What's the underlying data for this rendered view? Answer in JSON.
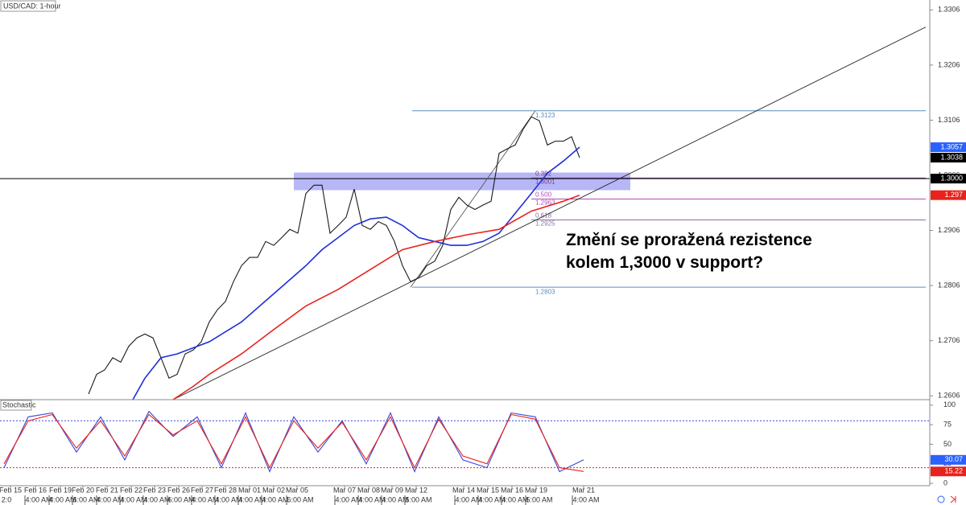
{
  "chart_data": [
    {
      "type": "line",
      "title": "USD/CAD: 1-hour",
      "annotation": [
        "Změní se proražená rezistence",
        "kolem 1,3000 v support?"
      ],
      "xlim": [
        0,
        115.5
      ],
      "ylim": [
        1.2599,
        1.3324
      ],
      "yticks": [
        1.2606,
        1.2706,
        1.2806,
        1.2906,
        1.3006,
        1.3106,
        1.3206,
        1.3306
      ],
      "xticks": [
        {
          "value": 1.3,
          "label": "Feb 15"
        },
        {
          "value": 4.4,
          "label": "Feb 16"
        },
        {
          "value": 7.5,
          "label": "Feb 19"
        },
        {
          "value": 10.3,
          "label": "Feb 20"
        },
        {
          "value": 13.3,
          "label": "Feb 21"
        },
        {
          "value": 16.3,
          "label": "Feb 22"
        },
        {
          "value": 19.2,
          "label": "Feb 23"
        },
        {
          "value": 22.2,
          "label": "Feb 26"
        },
        {
          "value": 25.1,
          "label": "Feb 27"
        },
        {
          "value": 28,
          "label": "Feb 28"
        },
        {
          "value": 31,
          "label": "Mar 01"
        },
        {
          "value": 34,
          "label": "Mar 02"
        },
        {
          "value": 36.9,
          "label": "Mar 05"
        },
        {
          "value": 42.8,
          "label": "Mar 07"
        },
        {
          "value": 45.8,
          "label": "Mar 08"
        },
        {
          "value": 48.7,
          "label": "Mar 09"
        },
        {
          "value": 51.7,
          "label": "Mar 12"
        },
        {
          "value": 57.6,
          "label": "Mar 14"
        },
        {
          "value": 60.6,
          "label": "Mar 15"
        },
        {
          "value": 63.6,
          "label": "Mar 16"
        },
        {
          "value": 66.6,
          "label": "Mar 19"
        },
        {
          "value": 72.5,
          "label": "Mar 21"
        }
      ],
      "time_ticks": [
        {
          "value": 0.8,
          "label": "2:0"
        },
        {
          "value": 4.8,
          "label": "4:00 AM"
        },
        {
          "value": 7.8,
          "label": "4:00 AM"
        },
        {
          "value": 10.7,
          "label": "6:00 AM"
        },
        {
          "value": 13.7,
          "label": "4:00 AM"
        },
        {
          "value": 16.6,
          "label": "4:00 AM"
        },
        {
          "value": 19.5,
          "label": "4:00 AM"
        },
        {
          "value": 22.5,
          "label": "6:00 AM"
        },
        {
          "value": 25.5,
          "label": "4:00 AM"
        },
        {
          "value": 28.4,
          "label": "4:00 AM"
        },
        {
          "value": 31.3,
          "label": "4:00 AM"
        },
        {
          "value": 34.2,
          "label": "4:00 AM"
        },
        {
          "value": 37.3,
          "label": "6:00 AM"
        },
        {
          "value": 43.3,
          "label": "4:00 AM"
        },
        {
          "value": 46.2,
          "label": "4:00 AM"
        },
        {
          "value": 49.1,
          "label": "4:00 AM"
        },
        {
          "value": 52,
          "label": "5:00 AM"
        },
        {
          "value": 58.2,
          "label": "4:00 AM"
        },
        {
          "value": 61.1,
          "label": "4:00 AM"
        },
        {
          "value": 64,
          "label": "4:00 AM"
        },
        {
          "value": 67,
          "label": "5:00 AM"
        },
        {
          "value": 72.8,
          "label": "4:00 AM"
        }
      ],
      "series": [
        {
          "color": "#1a1a1a",
          "x": [
            11,
            12,
            13,
            14,
            15,
            16,
            17,
            18,
            19,
            20,
            21,
            22,
            23,
            24,
            25,
            26,
            27,
            28,
            29,
            30,
            31,
            32,
            33,
            34,
            35,
            36,
            37,
            38,
            39,
            40,
            41,
            42,
            43,
            44,
            45,
            46,
            47,
            48,
            49,
            50,
            51,
            52,
            53,
            54,
            55,
            56,
            57,
            58,
            59,
            60,
            61,
            62,
            63,
            64,
            65,
            66,
            67,
            68,
            69,
            70,
            71,
            72
          ],
          "values": [
            1.2609,
            1.2645,
            1.2653,
            1.2675,
            1.2667,
            1.2696,
            1.2711,
            1.2718,
            1.2711,
            1.2675,
            1.2638,
            1.2645,
            1.2682,
            1.2689,
            1.2704,
            1.274,
            1.2762,
            1.2777,
            1.2813,
            1.2842,
            1.2857,
            1.2857,
            1.2886,
            1.2879,
            1.2893,
            1.2908,
            1.2901,
            1.2973,
            1.2988,
            1.2988,
            1.2901,
            1.2915,
            1.293,
            1.2981,
            1.2915,
            1.2908,
            1.2922,
            1.2915,
            1.2886,
            1.2842,
            1.2813,
            1.282,
            1.2842,
            1.285,
            1.2879,
            1.2944,
            1.2966,
            1.2952,
            1.2944,
            1.2952,
            1.2959,
            1.3046,
            1.3054,
            1.3061,
            1.309,
            1.3112,
            1.3105,
            1.3061,
            1.3068,
            1.3068,
            1.3076,
            1.3038
          ],
          "tag_bg": "#000000"
        },
        {
          "color": "#1f2fd6",
          "x": [
            16.5,
            18,
            20,
            22,
            26,
            30,
            34,
            38,
            40,
            42,
            44,
            46,
            48,
            50,
            52,
            54,
            56,
            58,
            60,
            62,
            64,
            66,
            68,
            70,
            72
          ],
          "values": [
            1.2599,
            1.2638,
            1.2675,
            1.2682,
            1.2704,
            1.274,
            1.2791,
            1.2842,
            1.2871,
            1.2893,
            1.2915,
            1.2927,
            1.293,
            1.2915,
            1.2893,
            1.2886,
            1.2879,
            1.2879,
            1.2886,
            1.2901,
            1.2937,
            1.2973,
            1.301,
            1.3032,
            1.3057
          ],
          "tag_bg": "#2962ff"
        },
        {
          "color": "#e8221c",
          "x": [
            21.5,
            24,
            26,
            30,
            34,
            38,
            42,
            46,
            50,
            54,
            58,
            62,
            66,
            70,
            72
          ],
          "values": [
            1.2599,
            1.2623,
            1.2645,
            1.2682,
            1.2726,
            1.2769,
            1.2799,
            1.2835,
            1.2871,
            1.2886,
            1.2898,
            1.2908,
            1.2941,
            1.2959,
            1.297
          ],
          "tag_bg": "#e8221c"
        }
      ],
      "hline": {
        "value": 1.3,
        "label": "1.3000",
        "color": "#000000"
      },
      "zone": {
        "x": [
          36.5,
          78.3
        ],
        "range": [
          1.2979,
          1.3011
        ],
        "color": "#7b7cf0"
      },
      "trendlines": [
        {
          "x": [
            21.5,
            115
          ],
          "values": [
            1.2599,
            1.3275
          ],
          "color": "#222222"
        },
        {
          "x": [
            51,
            66.5
          ],
          "values": [
            1.2803,
            1.3123
          ],
          "color": "#555555"
        }
      ],
      "fib": [
        {
          "price": 1.3123,
          "color": "#5b8ec2"
        },
        {
          "ratio": {
            "value": 0.382,
            "label": "0.382"
          },
          "price": 1.3001,
          "color": "#7a3d8f"
        },
        {
          "ratio": {
            "value": 0.5,
            "label": "0.500"
          },
          "price": 1.2963,
          "color": "#b04cb5"
        },
        {
          "ratio": {
            "value": 0.618,
            "label": "0.618"
          },
          "price": 1.2925,
          "color": "#8a6ea8"
        },
        {
          "price": 1.2803,
          "color": "#5b8ec2"
        }
      ]
    },
    {
      "type": "line",
      "title": "Stochastic",
      "ylim": [
        -3,
        107
      ],
      "yticks": [
        0,
        25,
        50,
        75,
        100
      ],
      "levels": [
        {
          "value": 80,
          "color": "#3a46d8"
        },
        {
          "value": 20,
          "color": "#e8221c"
        }
      ],
      "series": [
        {
          "color": "#3a46d8",
          "x": [
            0.5,
            3.5,
            6.5,
            9.5,
            12.5,
            15.5,
            18.5,
            21.5,
            24.5,
            27.5,
            30.5,
            33.5,
            36.5,
            39.5,
            42.5,
            45.5,
            48.5,
            51.5,
            54.5,
            57.5,
            60.5,
            63.5,
            66.5,
            69.5,
            72.5
          ],
          "values": [
            20,
            85,
            90,
            40,
            85,
            30,
            92,
            60,
            85,
            20,
            90,
            15,
            85,
            40,
            80,
            25,
            90,
            15,
            85,
            30,
            20,
            90,
            85,
            15,
            30.07
          ],
          "tag_bg": "#2962ff"
        },
        {
          "color": "#e8221c",
          "x": [
            0.5,
            3.5,
            6.5,
            9.5,
            12.5,
            15.5,
            18.5,
            21.5,
            24.5,
            27.5,
            30.5,
            33.5,
            36.5,
            39.5,
            42.5,
            45.5,
            48.5,
            51.5,
            54.5,
            57.5,
            60.5,
            63.5,
            66.5,
            69.5,
            72.5
          ],
          "values": [
            25,
            80,
            88,
            45,
            80,
            35,
            88,
            62,
            80,
            25,
            85,
            20,
            80,
            45,
            78,
            30,
            85,
            20,
            82,
            35,
            25,
            88,
            82,
            20,
            15.22
          ],
          "tag_bg": "#e8221c"
        }
      ]
    }
  ]
}
